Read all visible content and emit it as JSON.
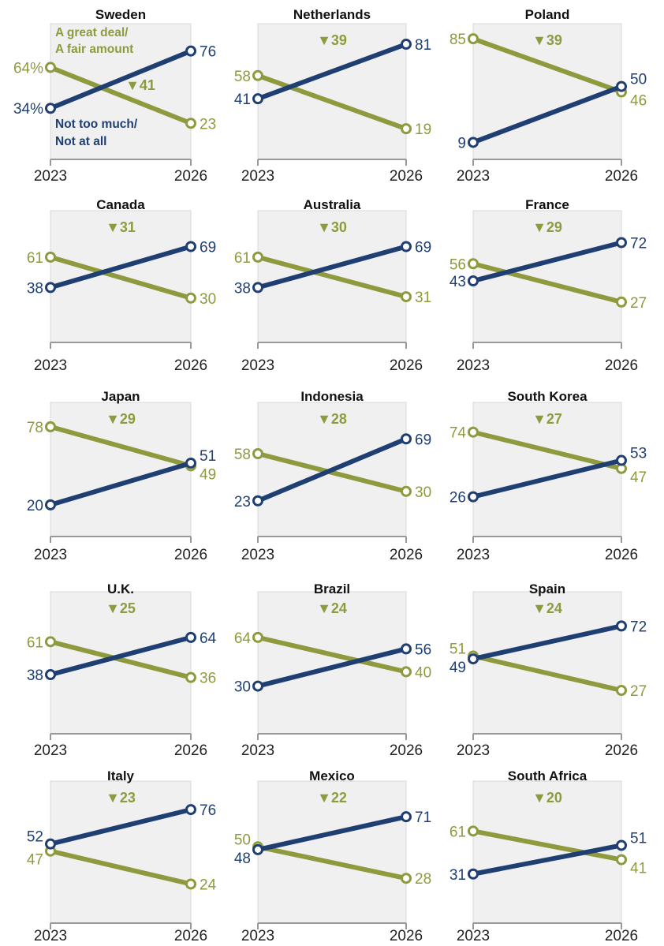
{
  "chart_data": {
    "type": "line",
    "x": [
      "2023",
      "2026"
    ],
    "series_labels": {
      "positive": "A great deal/\nA fair amount",
      "negative": "Not too much/\nNot at all"
    },
    "colors": {
      "positive": "#8f9a3e",
      "negative": "#1f3f73",
      "panel_bg": "#f0f0f0"
    },
    "panels": [
      {
        "title": "Sweden",
        "positive": [
          64,
          23
        ],
        "negative": [
          34,
          76
        ],
        "change": "▼41",
        "pct_suffix_first": true
      },
      {
        "title": "Netherlands",
        "positive": [
          58,
          19
        ],
        "negative": [
          41,
          81
        ],
        "change": "▼39"
      },
      {
        "title": "Poland",
        "positive": [
          85,
          46
        ],
        "negative": [
          9,
          50
        ],
        "change": "▼39"
      },
      {
        "title": "Canada",
        "positive": [
          61,
          30
        ],
        "negative": [
          38,
          69
        ],
        "change": "▼31"
      },
      {
        "title": "Australia",
        "positive": [
          61,
          31
        ],
        "negative": [
          38,
          69
        ],
        "change": "▼30"
      },
      {
        "title": "France",
        "positive": [
          56,
          27
        ],
        "negative": [
          43,
          72
        ],
        "change": "▼29"
      },
      {
        "title": "Japan",
        "positive": [
          78,
          49
        ],
        "negative": [
          20,
          51
        ],
        "change": "▼29"
      },
      {
        "title": "Indonesia",
        "positive": [
          58,
          30
        ],
        "negative": [
          23,
          69
        ],
        "change": "▼28"
      },
      {
        "title": "South Korea",
        "positive": [
          74,
          47
        ],
        "negative": [
          26,
          53
        ],
        "change": "▼27"
      },
      {
        "title": "U.K.",
        "positive": [
          61,
          36
        ],
        "negative": [
          38,
          64
        ],
        "change": "▼25"
      },
      {
        "title": "Brazil",
        "positive": [
          64,
          40
        ],
        "negative": [
          30,
          56
        ],
        "change": "▼24"
      },
      {
        "title": "Spain",
        "positive": [
          51,
          27
        ],
        "negative": [
          49,
          72
        ],
        "change": "▼24"
      },
      {
        "title": "Italy",
        "positive": [
          47,
          24
        ],
        "negative": [
          52,
          76
        ],
        "change": "▼23"
      },
      {
        "title": "Mexico",
        "positive": [
          50,
          28
        ],
        "negative": [
          48,
          71
        ],
        "change": "▼22"
      },
      {
        "title": "South Africa",
        "positive": [
          61,
          41
        ],
        "negative": [
          31,
          51
        ],
        "change": "▼20"
      }
    ]
  }
}
